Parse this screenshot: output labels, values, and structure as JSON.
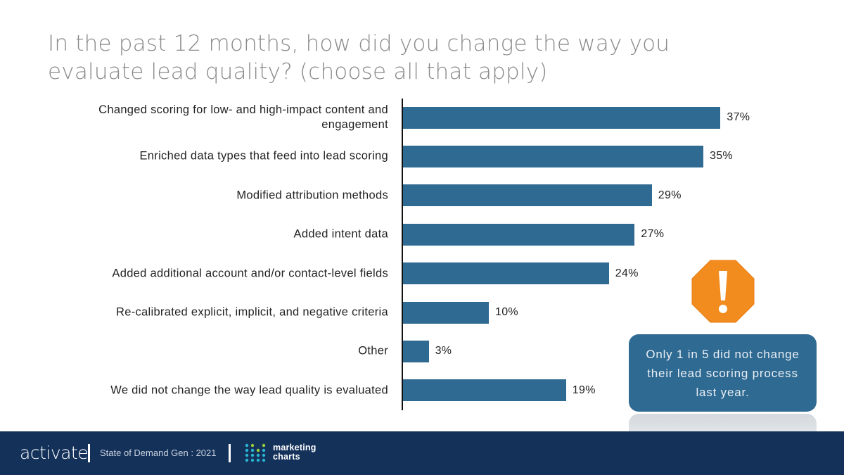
{
  "title": "In the past 12 months, how did you change the way you evaluate lead quality? (choose all that apply)",
  "chart_data": {
    "type": "bar",
    "orientation": "horizontal",
    "categories": [
      "Changed scoring for low- and high-impact content and engagement",
      "Enriched data types that feed into lead scoring",
      "Modified attribution methods",
      "Added intent data",
      "Added additional account and/or contact-level fields",
      "Re-calibrated explicit, implicit, and negative criteria",
      "Other",
      "We did not change the way lead quality is evaluated"
    ],
    "values": [
      37,
      35,
      29,
      27,
      24,
      10,
      3,
      19
    ],
    "value_labels": [
      "37%",
      "35%",
      "29%",
      "27%",
      "24%",
      "10%",
      "3%",
      "19%"
    ],
    "unit": "%",
    "xlim": [
      0,
      40
    ],
    "grid": false,
    "bar_color": "#2f6a92"
  },
  "callout": {
    "icon": "exclamation-octagon-icon",
    "icon_color": "#f28c1e",
    "text": "Only 1 in 5 did not change their lead scoring process last year."
  },
  "footer": {
    "brand": "activate",
    "report": "State of Demand Gen : 2021",
    "partner_line1": "marketing",
    "partner_line2": "charts"
  }
}
